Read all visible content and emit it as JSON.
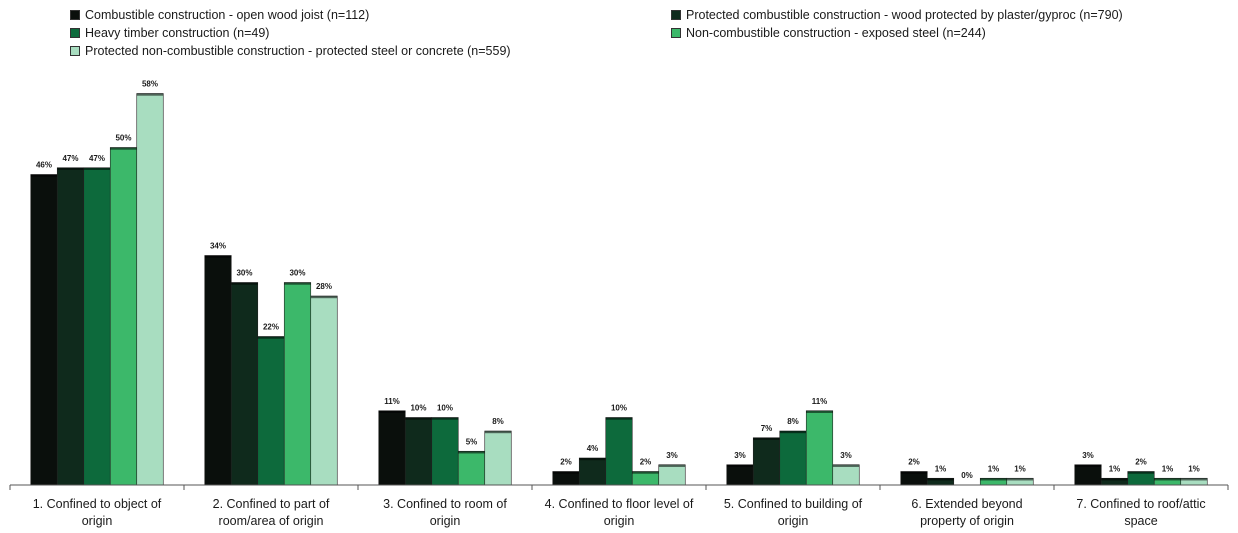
{
  "chart_data": {
    "type": "bar",
    "title": "",
    "xlabel": "",
    "ylabel": "",
    "ylim": [
      0,
      60
    ],
    "grid": false,
    "legend_position": "top",
    "categories": [
      [
        "1. Confined to object of",
        "origin"
      ],
      [
        "2. Confined to part of",
        "room/area of origin"
      ],
      [
        "3. Confined to room of",
        "origin"
      ],
      [
        "4. Confined to floor level of",
        "origin"
      ],
      [
        "5. Confined to building of",
        "origin"
      ],
      [
        "6. Extended beyond",
        "property of origin"
      ],
      [
        "7. Confined to roof/attic",
        "space"
      ]
    ],
    "series": [
      {
        "name": "Combustible construction - open wood joist (n=112)",
        "color": "#0a0f0c",
        "values": [
          46,
          34,
          11,
          2,
          3,
          2,
          3
        ]
      },
      {
        "name": "Protected combustible construction - wood protected by plaster/gyproc (n=790)",
        "color": "#0f2a1c",
        "values": [
          47,
          30,
          10,
          4,
          7,
          1,
          1
        ]
      },
      {
        "name": "Heavy timber construction (n=49)",
        "color": "#0d6a3c",
        "values": [
          47,
          22,
          10,
          10,
          8,
          0,
          2
        ]
      },
      {
        "name": "Non-combustible construction - exposed steel (n=244)",
        "color": "#3cb86a",
        "values": [
          50,
          30,
          5,
          2,
          11,
          1,
          1
        ]
      },
      {
        "name": "Protected non-combustible construction - protected steel or concrete (n=559)",
        "color": "#a8ddc0",
        "values": [
          58,
          28,
          8,
          3,
          3,
          1,
          1
        ]
      }
    ],
    "data_labels": [
      [
        "46%",
        "47%",
        "47%",
        "50%",
        "58%"
      ],
      [
        "34%",
        "30%",
        "22%",
        "30%",
        "28%"
      ],
      [
        "11%",
        "10%",
        "10%",
        "5%",
        "8%"
      ],
      [
        "2%",
        "4%",
        "10%",
        "2%",
        "3%"
      ],
      [
        "3%",
        "7%",
        "8%",
        "11%",
        "3%"
      ],
      [
        "2%",
        "1%",
        "0%",
        "1%",
        "1%"
      ],
      [
        "3%",
        "1%",
        "2%",
        "1%",
        "1%"
      ]
    ]
  }
}
